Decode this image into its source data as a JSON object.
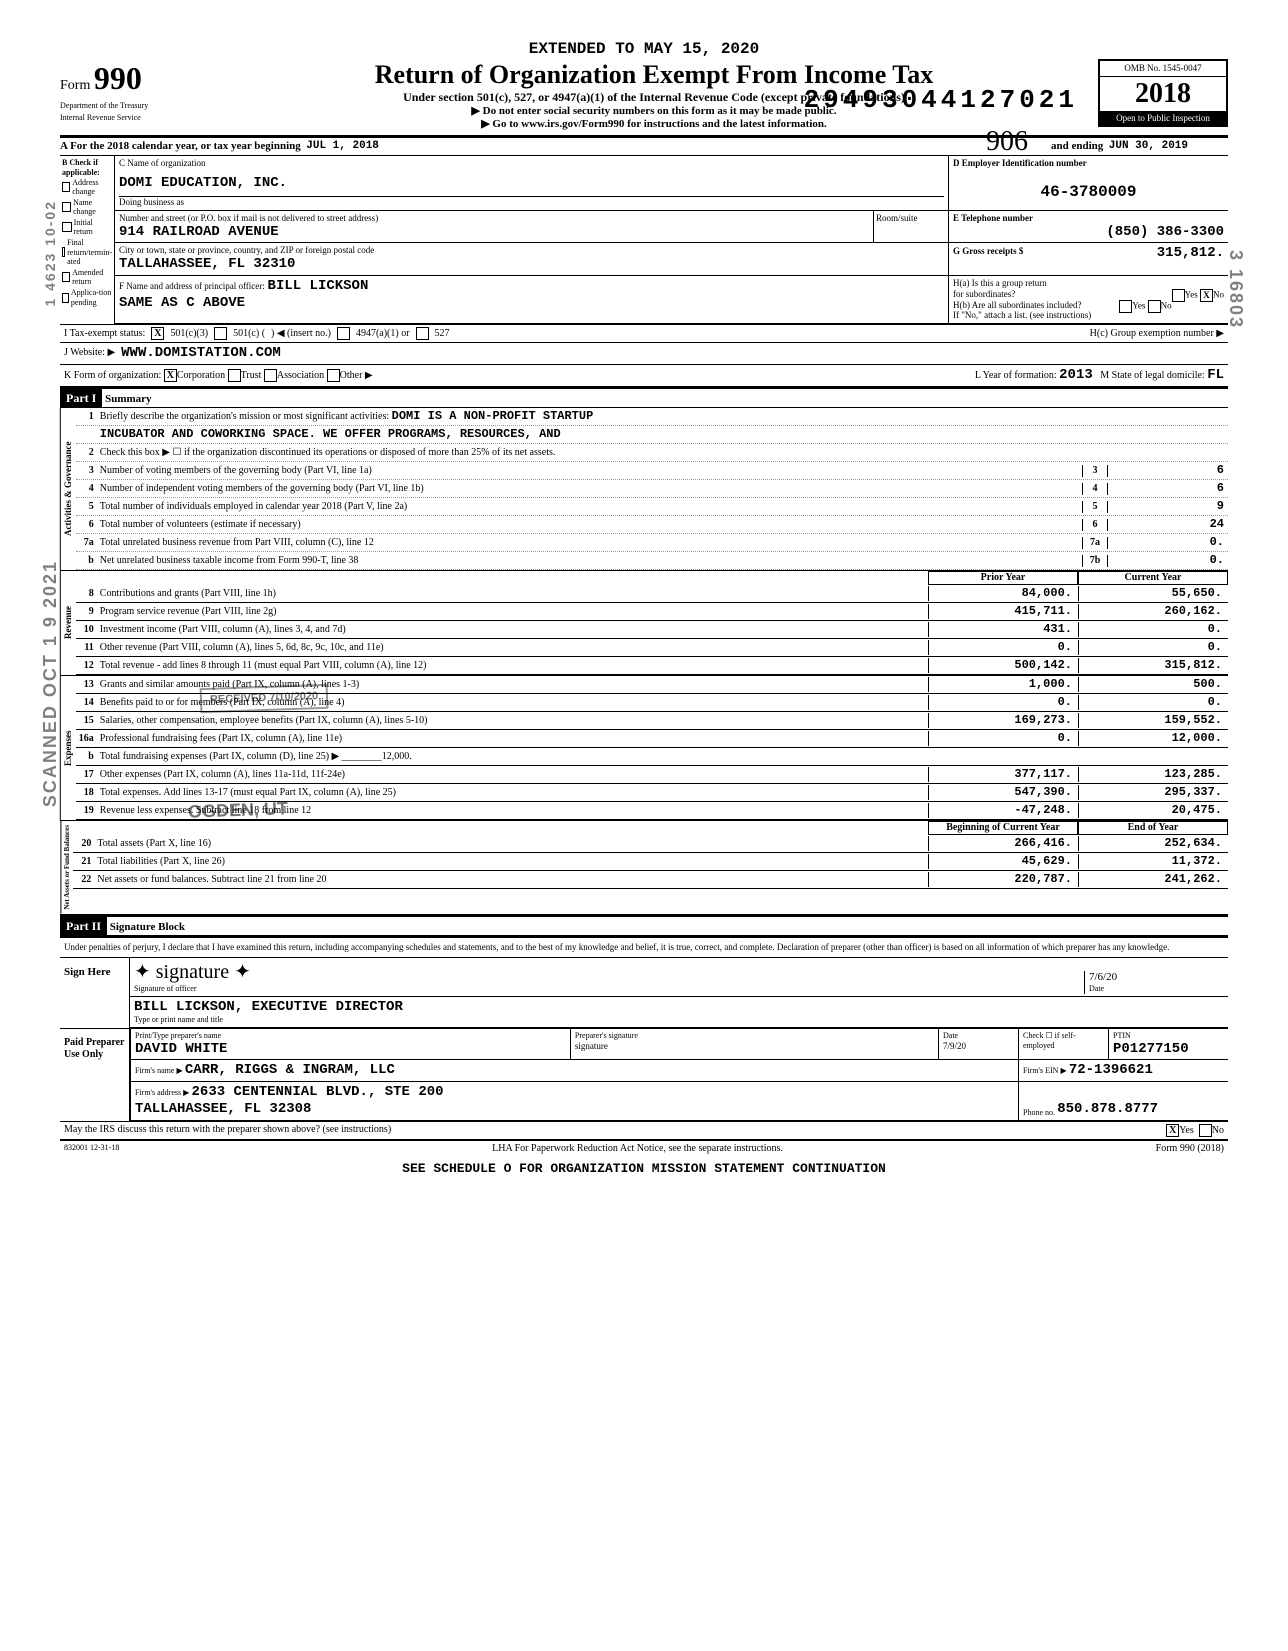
{
  "dln": "29493044127021",
  "handwritten_top": "906",
  "header": {
    "extended": "EXTENDED TO MAY 15, 2020",
    "form_word": "Form",
    "form_number": "990",
    "title": "Return of Organization Exempt From Income Tax",
    "subtitle": "Under section 501(c), 527, or 4947(a)(1) of the Internal Revenue Code (except private foundations)",
    "line1": "▶ Do not enter social security numbers on this form as it may be made public.",
    "line2": "▶ Go to www.irs.gov/Form990 for instructions and the latest information.",
    "dept1": "Department of the Treasury",
    "dept2": "Internal Revenue Service",
    "omb": "OMB No. 1545-0047",
    "year": "2018",
    "open": "Open to Public Inspection"
  },
  "period": {
    "prefix": "A For the 2018 calendar year, or tax year beginning",
    "begin": "JUL 1, 2018",
    "mid": "and ending",
    "end": "JUN 30, 2019"
  },
  "blockB": {
    "title": "B Check if applicable:",
    "opts": [
      "Address change",
      "Name change",
      "Initial return",
      "Final return/termin-ated",
      "Amended return",
      "Applica-tion pending"
    ]
  },
  "blockC": {
    "label": "C Name of organization",
    "name": "DOMI EDUCATION, INC.",
    "dba_label": "Doing business as",
    "addr_label": "Number and street (or P.O. box if mail is not delivered to street address)",
    "addr": "914 RAILROAD AVENUE",
    "room_label": "Room/suite",
    "city_label": "City or town, state or province, country, and ZIP or foreign postal code",
    "city": "TALLAHASSEE, FL  32310",
    "officer_label": "F Name and address of principal officer:",
    "officer_name": "BILL LICKSON",
    "officer_addr": "SAME AS C ABOVE"
  },
  "blockD": {
    "label": "D Employer Identification number",
    "ein": "46-3780009"
  },
  "blockE": {
    "label": "E Telephone number",
    "phone": "(850) 386-3300"
  },
  "blockG": {
    "label": "G Gross receipts $",
    "amount": "315,812."
  },
  "blockH": {
    "ha": "H(a) Is this a group return",
    "ha2": "for subordinates?",
    "yes": "Yes",
    "no": "No",
    "hb": "H(b) Are all subordinates included?",
    "hb_note": "If \"No,\" attach a list. (see instructions)",
    "hc": "H(c) Group exemption number ▶"
  },
  "statusRow": {
    "prefix": "I  Tax-exempt status:",
    "o1": "501(c)(3)",
    "o2": "501(c) (",
    "o2b": ") ◀ (insert no.)",
    "o3": "4947(a)(1) or",
    "o4": "527"
  },
  "webRow": {
    "prefix": "J  Website: ▶",
    "url": "WWW.DOMISTATION.COM"
  },
  "formOrg": {
    "prefix": "K Form of organization:",
    "corp": "Corporation",
    "trust": "Trust",
    "assoc": "Association",
    "other": "Other ▶",
    "l1": "L Year of formation:",
    "l1v": "2013",
    "l2": "M State of legal domicile:",
    "l2v": "FL"
  },
  "part1": {
    "label": "Part I",
    "title": "Summary"
  },
  "mission": {
    "num": "1",
    "label": "Briefly describe the organization's mission or most significant activities:",
    "text1": "DOMI IS A NON-PROFIT STARTUP",
    "text2": "INCUBATOR AND COWORKING SPACE. WE OFFER PROGRAMS, RESOURCES, AND"
  },
  "govLines": [
    {
      "n": "2",
      "label": "Check this box ▶ ☐ if the organization discontinued its operations or disposed of more than 25% of its net assets.",
      "cell": "",
      "val": ""
    },
    {
      "n": "3",
      "label": "Number of voting members of the governing body (Part VI, line 1a)",
      "cell": "3",
      "val": "6"
    },
    {
      "n": "4",
      "label": "Number of independent voting members of the governing body (Part VI, line 1b)",
      "cell": "4",
      "val": "6"
    },
    {
      "n": "5",
      "label": "Total number of individuals employed in calendar year 2018 (Part V, line 2a)",
      "cell": "5",
      "val": "9"
    },
    {
      "n": "6",
      "label": "Total number of volunteers (estimate if necessary)",
      "cell": "6",
      "val": "24"
    },
    {
      "n": "7a",
      "label": "Total unrelated business revenue from Part VIII, column (C), line 12",
      "cell": "7a",
      "val": "0."
    },
    {
      "n": "b",
      "label": "Net unrelated business taxable income from Form 990-T, line 38",
      "cell": "7b",
      "val": "0."
    }
  ],
  "revHeader": {
    "prior": "Prior Year",
    "curr": "Current Year"
  },
  "revLines": [
    {
      "n": "8",
      "label": "Contributions and grants (Part VIII, line 1h)",
      "p": "84,000.",
      "c": "55,650."
    },
    {
      "n": "9",
      "label": "Program service revenue (Part VIII, line 2g)",
      "p": "415,711.",
      "c": "260,162."
    },
    {
      "n": "10",
      "label": "Investment income (Part VIII, column (A), lines 3, 4, and 7d)",
      "p": "431.",
      "c": "0."
    },
    {
      "n": "11",
      "label": "Other revenue (Part VIII, column (A), lines 5, 6d, 8c, 9c, 10c, and 11e)",
      "p": "0.",
      "c": "0."
    },
    {
      "n": "12",
      "label": "Total revenue - add lines 8 through 11 (must equal Part VIII, column (A), line 12)",
      "p": "500,142.",
      "c": "315,812."
    }
  ],
  "expLines": [
    {
      "n": "13",
      "label": "Grants and similar amounts paid (Part IX, column (A), lines 1-3)",
      "p": "1,000.",
      "c": "500."
    },
    {
      "n": "14",
      "label": "Benefits paid to or for members (Part IX, column (A), line 4)",
      "p": "0.",
      "c": "0."
    },
    {
      "n": "15",
      "label": "Salaries, other compensation, employee benefits (Part IX, column (A), lines 5-10)",
      "p": "169,273.",
      "c": "159,552."
    },
    {
      "n": "16a",
      "label": "Professional fundraising fees (Part IX, column (A), line 11e)",
      "p": "0.",
      "c": "12,000."
    },
    {
      "n": "b",
      "label": "Total fundraising expenses (Part IX, column (D), line 25)  ▶ ________12,000.",
      "p": "",
      "c": ""
    },
    {
      "n": "17",
      "label": "Other expenses (Part IX, column (A), lines 11a-11d, 11f-24e)",
      "p": "377,117.",
      "c": "123,285."
    },
    {
      "n": "18",
      "label": "Total expenses. Add lines 13-17 (must equal Part IX, column (A), line 25)",
      "p": "547,390.",
      "c": "295,337."
    },
    {
      "n": "19",
      "label": "Revenue less expenses. Subtract line 18 from line 12",
      "p": "-47,248.",
      "c": "20,475."
    }
  ],
  "balHeader": {
    "begin": "Beginning of Current Year",
    "end": "End of Year"
  },
  "balLines": [
    {
      "n": "20",
      "label": "Total assets (Part X, line 16)",
      "p": "266,416.",
      "c": "252,634."
    },
    {
      "n": "21",
      "label": "Total liabilities (Part X, line 26)",
      "p": "45,629.",
      "c": "11,372."
    },
    {
      "n": "22",
      "label": "Net assets or fund balances. Subtract line 21 from line 20",
      "p": "220,787.",
      "c": "241,262."
    }
  ],
  "sideLabels": {
    "gov": "Activities & Governance",
    "rev": "Revenue",
    "exp": "Expenses",
    "bal": "Net Assets or Fund Balances"
  },
  "part2": {
    "label": "Part II",
    "title": "Signature Block"
  },
  "sig": {
    "perjury": "Under penalties of perjury, I declare that I have examined this return, including accompanying schedules and statements, and to the best of my knowledge and belief, it is true, correct, and complete. Declaration of preparer (other than officer) is based on all information of which preparer has any knowledge.",
    "sign_here": "Sign Here",
    "sig_of_officer": "Signature of officer",
    "date_label": "Date",
    "officer": "BILL LICKSON, EXECUTIVE DIRECTOR",
    "type_label": "Type or print name and title",
    "date_val": "7/6/20"
  },
  "paid": {
    "label": "Paid Preparer Use Only",
    "name_label": "Print/Type preparer's name",
    "name": "DAVID WHITE",
    "sig_label": "Preparer's signature",
    "date_label": "Date",
    "date": "7/9/20",
    "check_label": "Check ☐ if self-employed",
    "ptin_label": "PTIN",
    "ptin": "P01277150",
    "firm_name_label": "Firm's name ▶",
    "firm_name": "CARR, RIGGS & INGRAM, LLC",
    "firm_ein_label": "Firm's EIN ▶",
    "firm_ein": "72-1396621",
    "firm_addr_label": "Firm's address ▶",
    "firm_addr": "2633 CENTENNIAL BLVD., STE 200",
    "firm_city": "TALLAHASSEE, FL 32308",
    "phone_label": "Phone no.",
    "phone": "850.878.8777"
  },
  "discuss": {
    "q": "May the IRS discuss this return with the preparer shown above? (see instructions)",
    "yes": "Yes",
    "no": "No"
  },
  "footer": {
    "left": "832001 12-31-18",
    "mid": "LHA  For Paperwork Reduction Act Notice, see the separate instructions.",
    "right": "Form 990 (2018)",
    "sched": "SEE SCHEDULE O FOR ORGANIZATION MISSION STATEMENT CONTINUATION"
  },
  "stamps": {
    "scanned": "SCANNED OCT 1 9 2021",
    "received": "RECEIVED 7/10/2020",
    "ogden": "OGDEN, UT",
    "side_right": "3 16803",
    "side_left": "1 4623 10-02"
  },
  "colors": {
    "text": "#000000",
    "bg": "#ffffff",
    "stamp": "rgba(0,0,0,0.5)"
  }
}
